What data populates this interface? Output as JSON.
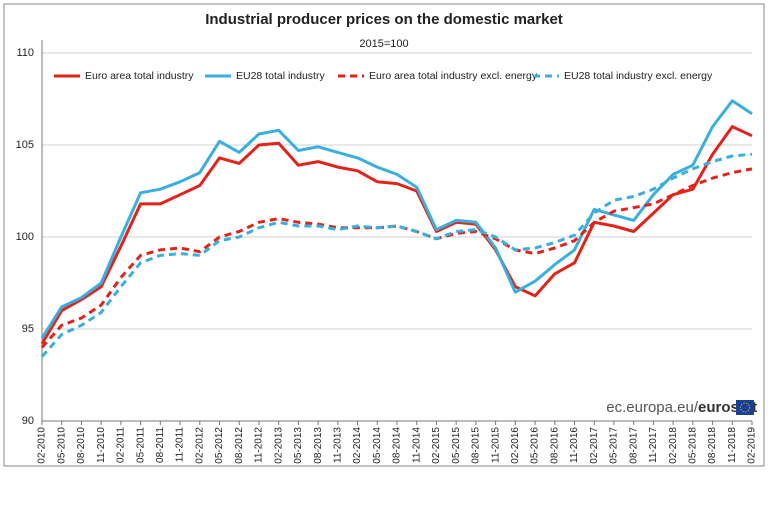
{
  "chart_data": {
    "type": "line",
    "title": "Industrial producer prices on the domestic market",
    "subtitle": "2015=100",
    "source_prefix": "ec.europa.eu/",
    "source_brand": "eurostat",
    "categories": [
      "02-2010",
      "05-2010",
      "08-2010",
      "11-2010",
      "02-2011",
      "05-2011",
      "08-2011",
      "11-2011",
      "02-2012",
      "05-2012",
      "08-2012",
      "11-2012",
      "02-2013",
      "05-2013",
      "08-2013",
      "11-2013",
      "02-2014",
      "05-2014",
      "08-2014",
      "11-2014",
      "02-2015",
      "05-2015",
      "08-2015",
      "11-2015",
      "02-2016",
      "05-2016",
      "08-2016",
      "11-2016",
      "02-2017",
      "05-2017",
      "08-2017",
      "11-2017",
      "02-2018",
      "05-2018",
      "08-2018",
      "11-2018",
      "02-2019"
    ],
    "ylim": [
      90,
      110
    ],
    "yticks": [
      90,
      95,
      100,
      105,
      110
    ],
    "grid": true,
    "series": [
      {
        "name": "Euro area total industry",
        "color": "#e2231a",
        "dashed": false,
        "values": [
          94.2,
          96.0,
          96.6,
          97.3,
          99.5,
          101.8,
          101.8,
          102.3,
          102.8,
          104.3,
          104.0,
          105.0,
          105.1,
          103.9,
          104.1,
          103.8,
          103.6,
          103.0,
          102.9,
          102.5,
          100.3,
          100.8,
          100.7,
          99.3,
          97.3,
          96.8,
          98.0,
          98.6,
          100.8,
          100.6,
          100.3,
          101.3,
          102.3,
          102.6,
          104.5,
          106.0,
          105.5
        ]
      },
      {
        "name": "EU28 total industry",
        "color": "#3aaedc",
        "dashed": false,
        "values": [
          94.5,
          96.2,
          96.7,
          97.5,
          100.0,
          102.4,
          102.6,
          103.0,
          103.5,
          105.2,
          104.6,
          105.6,
          105.8,
          104.7,
          104.9,
          104.6,
          104.3,
          103.8,
          103.4,
          102.7,
          100.4,
          100.9,
          100.8,
          99.4,
          97.0,
          97.6,
          98.5,
          99.3,
          101.5,
          101.2,
          100.9,
          102.3,
          103.4,
          103.9,
          106.0,
          107.4,
          106.7
        ]
      },
      {
        "name": "Euro area total industry excl. energy",
        "color": "#e2231a",
        "dashed": true,
        "values": [
          94.0,
          95.2,
          95.6,
          96.3,
          97.8,
          99.0,
          99.3,
          99.4,
          99.2,
          100.0,
          100.3,
          100.8,
          101.0,
          100.8,
          100.7,
          100.5,
          100.5,
          100.5,
          100.6,
          100.3,
          99.9,
          100.2,
          100.3,
          99.9,
          99.3,
          99.1,
          99.4,
          99.8,
          100.8,
          101.4,
          101.6,
          101.8,
          102.3,
          102.8,
          103.2,
          103.5,
          103.7
        ]
      },
      {
        "name": "EU28 total industry excl. energy",
        "color": "#3aaedc",
        "dashed": true,
        "values": [
          93.5,
          94.7,
          95.2,
          95.9,
          97.3,
          98.6,
          99.0,
          99.1,
          99.0,
          99.8,
          100.0,
          100.5,
          100.8,
          100.6,
          100.6,
          100.4,
          100.6,
          100.5,
          100.6,
          100.3,
          99.9,
          100.3,
          100.4,
          100.0,
          99.3,
          99.4,
          99.7,
          100.1,
          101.3,
          102.0,
          102.2,
          102.6,
          103.2,
          103.7,
          104.1,
          104.4,
          104.5
        ]
      }
    ]
  }
}
